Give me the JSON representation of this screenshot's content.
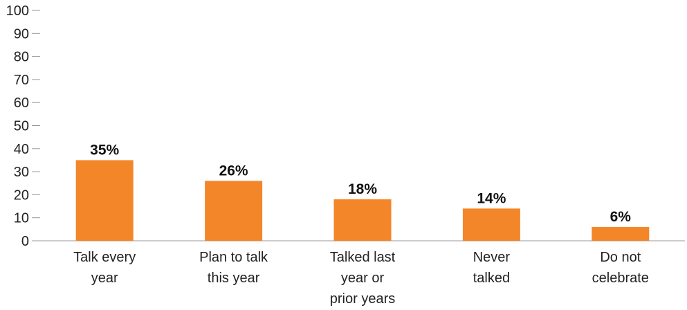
{
  "chart_data": {
    "type": "bar",
    "title": "",
    "xlabel": "",
    "ylabel": "",
    "ylim": [
      0,
      100
    ],
    "yticks": [
      0,
      10,
      20,
      30,
      40,
      50,
      60,
      70,
      80,
      90,
      100
    ],
    "grid": false,
    "categories": [
      [
        "Talk every",
        "year"
      ],
      [
        "Plan to talk",
        "this year"
      ],
      [
        "Talked last",
        "year or",
        "prior years"
      ],
      [
        "Never",
        "talked"
      ],
      [
        "Do not",
        "celebrate"
      ]
    ],
    "values": [
      35,
      26,
      18,
      14,
      6
    ],
    "data_labels": [
      "35%",
      "26%",
      "18%",
      "14%",
      "6%"
    ],
    "bar_color": "#F4862A",
    "axis_color": "#999999"
  }
}
